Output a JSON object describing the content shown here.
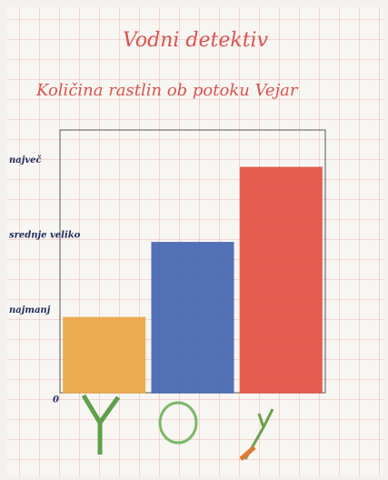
{
  "chart_data": {
    "type": "bar",
    "title": "Vodni detektiv",
    "subtitle": "Količina rastlin ob potoku Vejar",
    "categories": [
      null,
      null,
      null
    ],
    "series": [
      {
        "colors": [
          "#eba23c",
          "#3d5fae",
          "#e2493a"
        ],
        "values": [
          1,
          2,
          3
        ]
      }
    ],
    "ylim": [
      0,
      3.5
    ],
    "yticks": [
      0,
      {
        "value": 1,
        "label": "najmanj"
      },
      {
        "value": 2,
        "label": "srednje veliko"
      },
      {
        "value": 3,
        "label": "največ"
      }
    ],
    "grid": false
  }
}
